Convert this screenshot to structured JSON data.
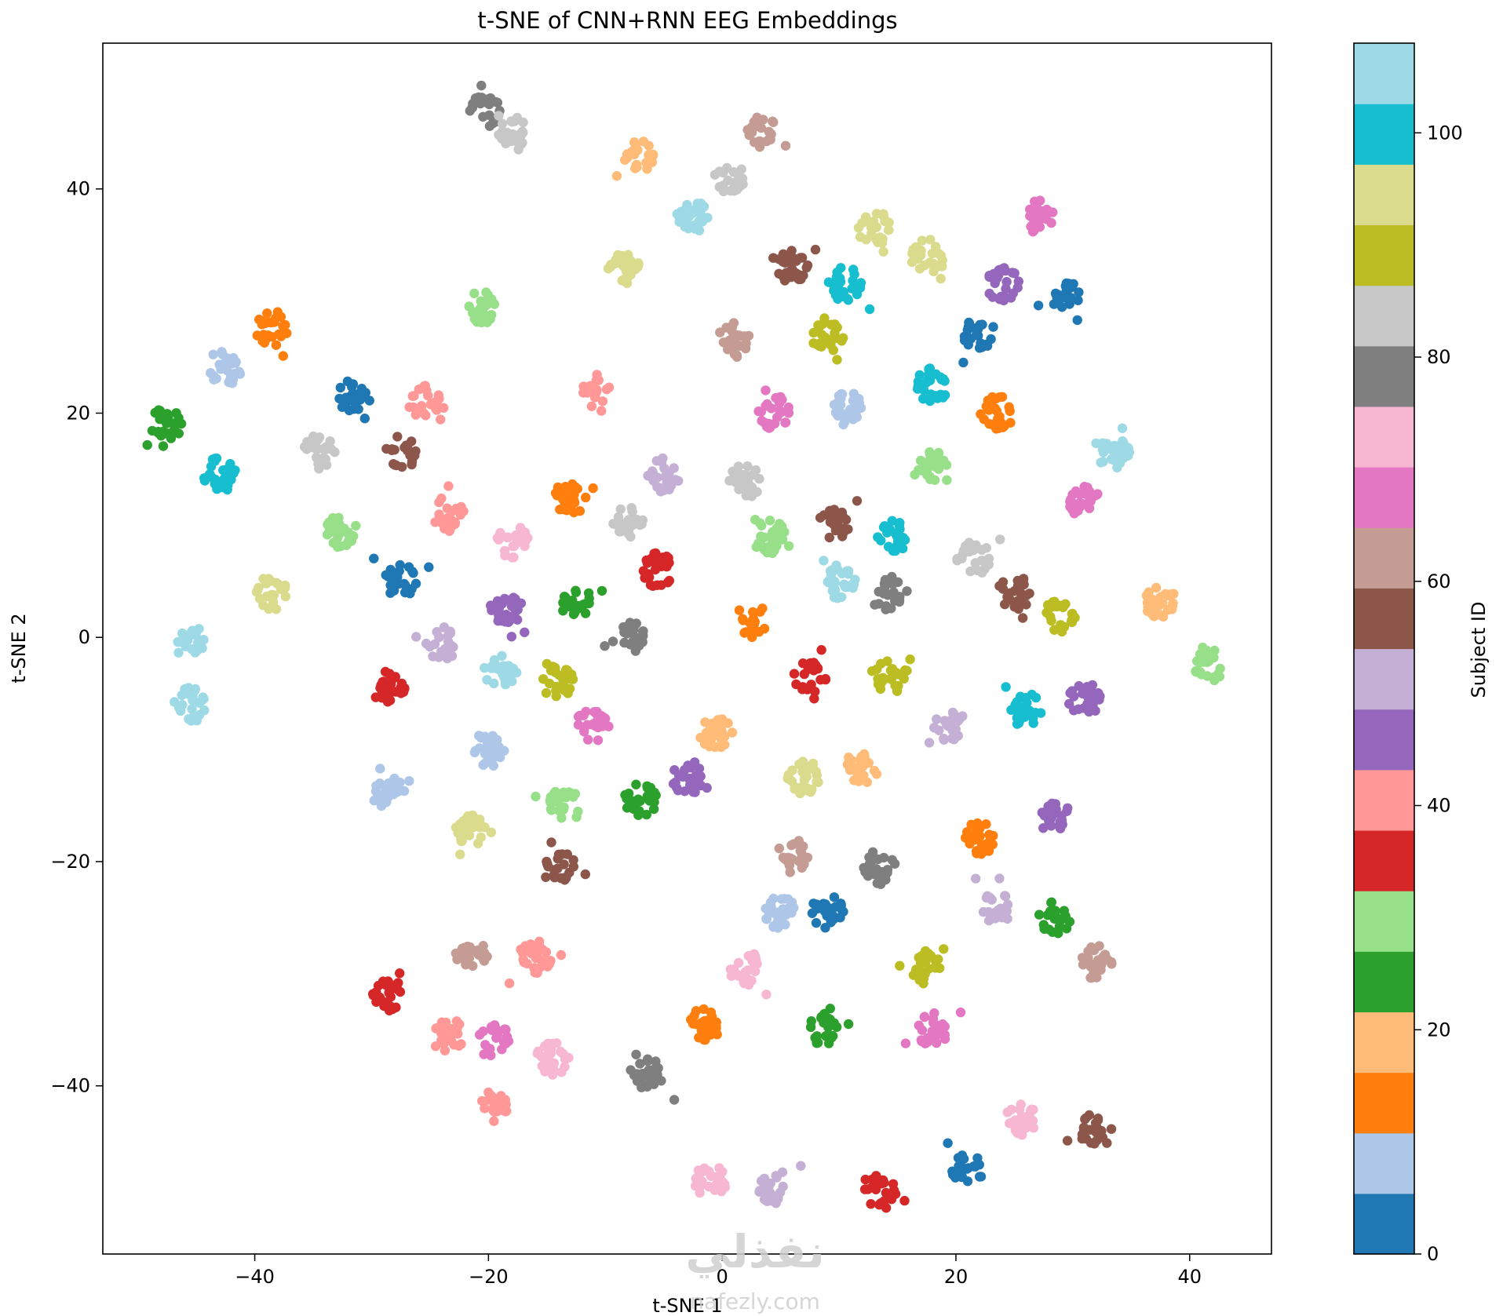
{
  "chart_data": {
    "type": "scatter",
    "title": "t-SNE of CNN+RNN EEG Embeddings",
    "xlabel": "t-SNE 1",
    "ylabel": "t-SNE 2",
    "xlim": [
      -53,
      47
    ],
    "ylim": [
      -55,
      53
    ],
    "xticks": [
      -40,
      -20,
      0,
      20,
      40
    ],
    "yticks": [
      -40,
      -20,
      0,
      20,
      40
    ],
    "grid": false,
    "colorbar": {
      "label": "Subject ID",
      "range": [
        0,
        108
      ],
      "ticks": [
        0,
        20,
        40,
        60,
        80,
        100
      ],
      "colormap": "tab20",
      "colors": [
        "#1f77b4",
        "#aec7e8",
        "#ff7f0e",
        "#ffbb78",
        "#2ca02c",
        "#98df8a",
        "#d62728",
        "#ff9896",
        "#9467bd",
        "#c5b0d5",
        "#8c564b",
        "#c49c94",
        "#e377c2",
        "#f7b6d2",
        "#7f7f7f",
        "#c7c7c7",
        "#bcbd22",
        "#dbdb8d",
        "#17becf",
        "#9edae5"
      ]
    },
    "clusters": [
      {
        "x": -20.2,
        "y": 47.0,
        "c": 14
      },
      {
        "x": -17.8,
        "y": 45.0,
        "c": 15
      },
      {
        "x": -7.0,
        "y": 43.0,
        "c": 3
      },
      {
        "x": 3.5,
        "y": 45.0,
        "c": 11
      },
      {
        "x": 0.5,
        "y": 41.0,
        "c": 15
      },
      {
        "x": -2.5,
        "y": 37.5,
        "c": 19
      },
      {
        "x": 13.0,
        "y": 36.5,
        "c": 17
      },
      {
        "x": 27.0,
        "y": 37.5,
        "c": 12
      },
      {
        "x": 17.5,
        "y": 34.0,
        "c": 17
      },
      {
        "x": -8.5,
        "y": 33.0,
        "c": 17
      },
      {
        "x": 6.0,
        "y": 33.0,
        "c": 10
      },
      {
        "x": 10.5,
        "y": 31.5,
        "c": 18
      },
      {
        "x": 24.0,
        "y": 31.5,
        "c": 8
      },
      {
        "x": 29.5,
        "y": 30.5,
        "c": 0
      },
      {
        "x": -20.5,
        "y": 29.5,
        "c": 5
      },
      {
        "x": -38.5,
        "y": 27.5,
        "c": 2
      },
      {
        "x": 1.0,
        "y": 26.5,
        "c": 11
      },
      {
        "x": 9.0,
        "y": 27.0,
        "c": 16
      },
      {
        "x": 22.0,
        "y": 27.0,
        "c": 0
      },
      {
        "x": -42.5,
        "y": 24.0,
        "c": 1
      },
      {
        "x": 18.0,
        "y": 22.5,
        "c": 18
      },
      {
        "x": -31.5,
        "y": 21.5,
        "c": 0
      },
      {
        "x": -25.5,
        "y": 21.0,
        "c": 7
      },
      {
        "x": -11.0,
        "y": 22.0,
        "c": 7
      },
      {
        "x": 10.5,
        "y": 20.5,
        "c": 1
      },
      {
        "x": 4.5,
        "y": 20.0,
        "c": 12
      },
      {
        "x": 23.5,
        "y": 20.0,
        "c": 2
      },
      {
        "x": -47.5,
        "y": 19.0,
        "c": 4
      },
      {
        "x": -34.5,
        "y": 16.5,
        "c": 15
      },
      {
        "x": -27.5,
        "y": 16.5,
        "c": 10
      },
      {
        "x": 33.5,
        "y": 16.5,
        "c": 19
      },
      {
        "x": -43.0,
        "y": 14.5,
        "c": 18
      },
      {
        "x": 18.0,
        "y": 15.5,
        "c": 5
      },
      {
        "x": -5.0,
        "y": 14.5,
        "c": 9
      },
      {
        "x": 2.0,
        "y": 14.0,
        "c": 15
      },
      {
        "x": -13.0,
        "y": 12.5,
        "c": 2
      },
      {
        "x": 31.0,
        "y": 12.0,
        "c": 12
      },
      {
        "x": -23.5,
        "y": 11.0,
        "c": 7
      },
      {
        "x": -8.0,
        "y": 10.5,
        "c": 15
      },
      {
        "x": 9.5,
        "y": 10.0,
        "c": 10
      },
      {
        "x": -32.5,
        "y": 9.5,
        "c": 5
      },
      {
        "x": -18.0,
        "y": 8.5,
        "c": 13
      },
      {
        "x": 4.0,
        "y": 9.0,
        "c": 5
      },
      {
        "x": 14.5,
        "y": 9.0,
        "c": 18
      },
      {
        "x": 21.5,
        "y": 7.0,
        "c": 15
      },
      {
        "x": -5.5,
        "y": 6.0,
        "c": 6
      },
      {
        "x": -27.5,
        "y": 5.0,
        "c": 0
      },
      {
        "x": 10.0,
        "y": 5.0,
        "c": 19
      },
      {
        "x": -38.5,
        "y": 4.0,
        "c": 17
      },
      {
        "x": 14.0,
        "y": 4.0,
        "c": 14
      },
      {
        "x": 25.0,
        "y": 4.0,
        "c": 10
      },
      {
        "x": 37.5,
        "y": 3.0,
        "c": 3
      },
      {
        "x": -12.5,
        "y": 3.0,
        "c": 4
      },
      {
        "x": -18.5,
        "y": 2.5,
        "c": 8
      },
      {
        "x": 29.0,
        "y": 2.0,
        "c": 16
      },
      {
        "x": 2.5,
        "y": 1.5,
        "c": 2
      },
      {
        "x": -8.0,
        "y": 0.0,
        "c": 14
      },
      {
        "x": -24.0,
        "y": -0.5,
        "c": 9
      },
      {
        "x": -45.5,
        "y": -0.5,
        "c": 19
      },
      {
        "x": 41.5,
        "y": -2.5,
        "c": 5
      },
      {
        "x": -19.0,
        "y": -3.0,
        "c": 19
      },
      {
        "x": -14.0,
        "y": -4.0,
        "c": 16
      },
      {
        "x": 7.5,
        "y": -3.5,
        "c": 6
      },
      {
        "x": 14.5,
        "y": -3.5,
        "c": 16
      },
      {
        "x": -28.5,
        "y": -4.5,
        "c": 6
      },
      {
        "x": 31.0,
        "y": -5.5,
        "c": 8
      },
      {
        "x": -45.5,
        "y": -6.0,
        "c": 19
      },
      {
        "x": 26.0,
        "y": -6.5,
        "c": 18
      },
      {
        "x": -11.0,
        "y": -7.5,
        "c": 12
      },
      {
        "x": -0.5,
        "y": -8.5,
        "c": 3
      },
      {
        "x": 19.5,
        "y": -8.0,
        "c": 9
      },
      {
        "x": -20.0,
        "y": -10.0,
        "c": 1
      },
      {
        "x": 7.0,
        "y": -12.5,
        "c": 17
      },
      {
        "x": 12.0,
        "y": -11.5,
        "c": 3
      },
      {
        "x": -3.0,
        "y": -12.5,
        "c": 8
      },
      {
        "x": -28.5,
        "y": -14.0,
        "c": 1
      },
      {
        "x": -13.5,
        "y": -15.0,
        "c": 5
      },
      {
        "x": -7.0,
        "y": -14.5,
        "c": 4
      },
      {
        "x": -21.5,
        "y": -17.0,
        "c": 17
      },
      {
        "x": 22.0,
        "y": -18.0,
        "c": 2
      },
      {
        "x": 28.5,
        "y": -16.0,
        "c": 8
      },
      {
        "x": 6.0,
        "y": -19.5,
        "c": 11
      },
      {
        "x": 13.5,
        "y": -20.5,
        "c": 14
      },
      {
        "x": -14.0,
        "y": -20.5,
        "c": 10
      },
      {
        "x": 5.0,
        "y": -24.5,
        "c": 1
      },
      {
        "x": 9.0,
        "y": -24.5,
        "c": 0
      },
      {
        "x": 23.5,
        "y": -24.0,
        "c": 9
      },
      {
        "x": 28.5,
        "y": -25.0,
        "c": 4
      },
      {
        "x": -21.5,
        "y": -28.5,
        "c": 11
      },
      {
        "x": -16.0,
        "y": -28.5,
        "c": 7
      },
      {
        "x": 2.0,
        "y": -29.5,
        "c": 13
      },
      {
        "x": 17.5,
        "y": -29.5,
        "c": 16
      },
      {
        "x": 32.0,
        "y": -29.0,
        "c": 11
      },
      {
        "x": -28.5,
        "y": -32.0,
        "c": 6
      },
      {
        "x": -1.5,
        "y": -34.5,
        "c": 2
      },
      {
        "x": 8.5,
        "y": -35.0,
        "c": 4
      },
      {
        "x": 18.0,
        "y": -35.0,
        "c": 12
      },
      {
        "x": -23.5,
        "y": -35.5,
        "c": 7
      },
      {
        "x": -19.5,
        "y": -36.0,
        "c": 12
      },
      {
        "x": -14.5,
        "y": -37.5,
        "c": 13
      },
      {
        "x": -6.5,
        "y": -39.0,
        "c": 14
      },
      {
        "x": -19.5,
        "y": -42.0,
        "c": 7
      },
      {
        "x": 25.5,
        "y": -43.0,
        "c": 13
      },
      {
        "x": 32.0,
        "y": -44.0,
        "c": 10
      },
      {
        "x": 21.0,
        "y": -47.5,
        "c": 0
      },
      {
        "x": -1.0,
        "y": -48.5,
        "c": 13
      },
      {
        "x": 4.5,
        "y": -49.0,
        "c": 9
      },
      {
        "x": 13.5,
        "y": -49.5,
        "c": 6
      }
    ]
  },
  "watermark": {
    "arabic": "نفذلي",
    "latin": "nafezly.com"
  }
}
